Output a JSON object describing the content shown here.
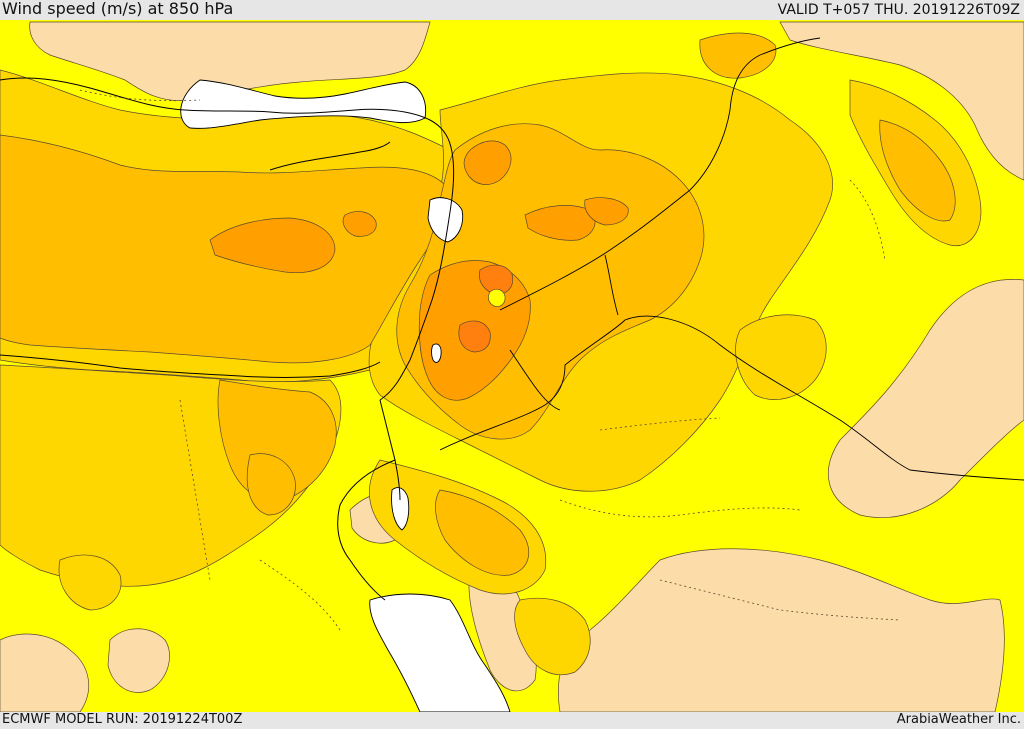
{
  "header": {
    "title": "Wind speed (m/s) at 850 hPa",
    "valid_time": "VALID T+057 THU. 20191226T09Z"
  },
  "footer": {
    "model_run": "ECMWF MODEL RUN: 20191224T00Z",
    "credit": "ArabiaWeather Inc."
  },
  "map": {
    "region": "Eastern Mediterranean / Levant / Northern Arabia",
    "field": "wind speed",
    "colors": {
      "sea_white": "#ffffff",
      "peach": "#fcdca8",
      "yellow": "#ffff00",
      "gold": "#ffd700",
      "amber": "#ffbf00",
      "orange": "#ff9f00",
      "dark_orange": "#ff7f0f",
      "contour_line": "#4a3a20",
      "border_line": "#000000"
    }
  }
}
